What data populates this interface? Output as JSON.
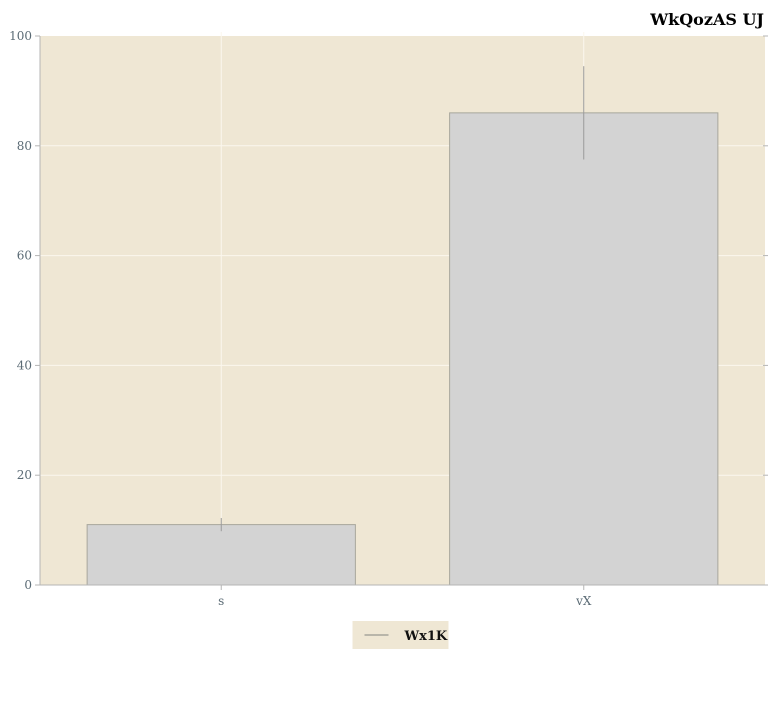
{
  "chart_data": {
    "type": "bar",
    "title": "WkQozAS  UJ",
    "xlabel": "",
    "ylabel": "",
    "categories": [
      "s",
      "vX"
    ],
    "series": [
      {
        "name": "Wx1K",
        "values": [
          11,
          86
        ],
        "errors": [
          1.2,
          8.5
        ]
      }
    ],
    "ylim": [
      0,
      100
    ],
    "yticks": [
      0,
      20,
      40,
      60,
      80,
      100
    ],
    "grid": true,
    "legend_position": "bottom-center",
    "colors": {
      "plot_background": "#efe7d4",
      "bar_fill": "#d3d3d3",
      "bar_edge": "#a7a69c",
      "error_bar": "#9a9a9a",
      "grid": "#fbf7ee",
      "axis": "#b5b5b5",
      "tick_text": "#5a6a74"
    }
  }
}
